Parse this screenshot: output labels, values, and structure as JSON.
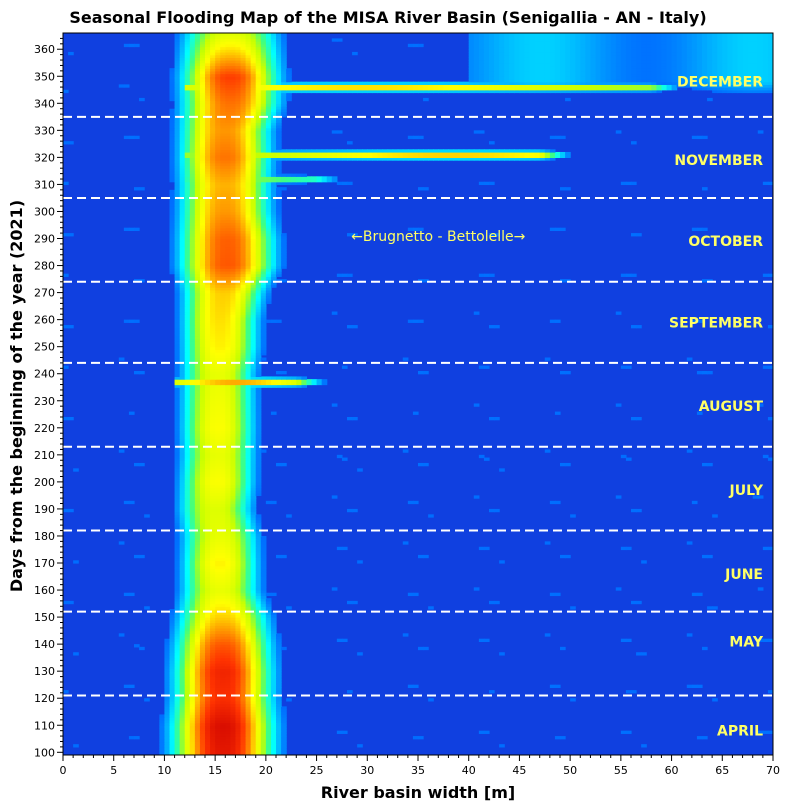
{
  "chart_data": {
    "type": "heatmap",
    "title": "Seasonal Flooding Map of the MISA River Basin (Senigallia - AN - Italy)",
    "xlabel": "River basin width [m]",
    "ylabel": "Days from the beginning of the year (2021)",
    "xlim": [
      0,
      70
    ],
    "ylim": [
      99,
      366
    ],
    "x_ticks": [
      0,
      5,
      10,
      15,
      20,
      25,
      30,
      35,
      40,
      45,
      50,
      55,
      60,
      65,
      70
    ],
    "y_ticks": [
      100,
      110,
      120,
      130,
      140,
      150,
      160,
      170,
      180,
      190,
      200,
      210,
      220,
      230,
      240,
      250,
      260,
      270,
      280,
      290,
      300,
      310,
      320,
      330,
      340,
      350,
      360
    ],
    "colormap": [
      "#0000ff",
      "#0044ff",
      "#00a0ff",
      "#00ffff",
      "#40ff80",
      "#c8ff00",
      "#ffff00",
      "#ff9900",
      "#ff3300",
      "#cc0000"
    ],
    "background_color": "#1040e0",
    "month_boundaries_days": [
      121,
      152,
      182,
      213,
      244,
      274,
      305,
      335
    ],
    "month_boundary_style": "white dashed",
    "months": [
      {
        "name": "APRIL",
        "day": 108
      },
      {
        "name": "MAY",
        "day": 141
      },
      {
        "name": "JUNE",
        "day": 166
      },
      {
        "name": "JULY",
        "day": 197
      },
      {
        "name": "AUGUST",
        "day": 228
      },
      {
        "name": "SEPTEMBER",
        "day": 259
      },
      {
        "name": "OCTOBER",
        "day": 289
      },
      {
        "name": "NOVEMBER",
        "day": 319
      },
      {
        "name": "DECEMBER",
        "day": 348
      }
    ],
    "annotation": {
      "text": "←Brugnetto - Bettolelle→",
      "x": 37,
      "y": 291
    },
    "channel_core": [
      {
        "day": 100,
        "center": 15.8,
        "halfwidth": 4.5,
        "intensity": 0.95
      },
      {
        "day": 110,
        "center": 15.8,
        "halfwidth": 4.5,
        "intensity": 0.97
      },
      {
        "day": 120,
        "center": 15.8,
        "halfwidth": 4.3,
        "intensity": 0.9
      },
      {
        "day": 130,
        "center": 15.8,
        "halfwidth": 4.3,
        "intensity": 0.92
      },
      {
        "day": 140,
        "center": 15.8,
        "halfwidth": 4.2,
        "intensity": 0.85
      },
      {
        "day": 150,
        "center": 15.8,
        "halfwidth": 4.0,
        "intensity": 0.72
      },
      {
        "day": 160,
        "center": 15.5,
        "halfwidth": 3.5,
        "intensity": 0.62
      },
      {
        "day": 170,
        "center": 15.5,
        "halfwidth": 3.4,
        "intensity": 0.68
      },
      {
        "day": 180,
        "center": 15.5,
        "halfwidth": 3.4,
        "intensity": 0.62
      },
      {
        "day": 190,
        "center": 15.0,
        "halfwidth": 3.3,
        "intensity": 0.6
      },
      {
        "day": 200,
        "center": 15.2,
        "halfwidth": 3.3,
        "intensity": 0.66
      },
      {
        "day": 210,
        "center": 15.3,
        "halfwidth": 3.3,
        "intensity": 0.62
      },
      {
        "day": 220,
        "center": 15.3,
        "halfwidth": 3.3,
        "intensity": 0.66
      },
      {
        "day": 230,
        "center": 15.3,
        "halfwidth": 3.3,
        "intensity": 0.64
      },
      {
        "day": 240,
        "center": 15.3,
        "halfwidth": 3.3,
        "intensity": 0.62
      },
      {
        "day": 250,
        "center": 15.5,
        "halfwidth": 3.4,
        "intensity": 0.68
      },
      {
        "day": 260,
        "center": 15.5,
        "halfwidth": 3.4,
        "intensity": 0.7
      },
      {
        "day": 270,
        "center": 15.8,
        "halfwidth": 3.6,
        "intensity": 0.72
      },
      {
        "day": 280,
        "center": 16.2,
        "halfwidth": 4.2,
        "intensity": 0.85
      },
      {
        "day": 290,
        "center": 16.2,
        "halfwidth": 4.2,
        "intensity": 0.84
      },
      {
        "day": 300,
        "center": 16.0,
        "halfwidth": 4.0,
        "intensity": 0.78
      },
      {
        "day": 310,
        "center": 16.0,
        "halfwidth": 4.0,
        "intensity": 0.75
      },
      {
        "day": 320,
        "center": 16.0,
        "halfwidth": 4.0,
        "intensity": 0.82
      },
      {
        "day": 330,
        "center": 16.0,
        "halfwidth": 4.0,
        "intensity": 0.78
      },
      {
        "day": 340,
        "center": 16.5,
        "halfwidth": 4.3,
        "intensity": 0.82
      },
      {
        "day": 350,
        "center": 16.5,
        "halfwidth": 4.3,
        "intensity": 0.88
      },
      {
        "day": 360,
        "center": 16.5,
        "halfwidth": 4.3,
        "intensity": 0.7
      },
      {
        "day": 366,
        "center": 16.5,
        "halfwidth": 4.3,
        "intensity": 0.6
      }
    ],
    "flood_events": [
      {
        "day": 346,
        "x_start": 12,
        "x_end": 58,
        "peak_x": 30,
        "intensity": 0.78
      },
      {
        "day": 321,
        "x_start": 12,
        "x_end": 47,
        "peak_x": 38,
        "intensity": 0.8
      },
      {
        "day": 312,
        "x_start": 12,
        "x_end": 25,
        "peak_x": 18,
        "intensity": 0.55
      },
      {
        "day": 237,
        "x_start": 11,
        "x_end": 23,
        "peak_x": 17,
        "intensity": 0.85
      }
    ]
  }
}
